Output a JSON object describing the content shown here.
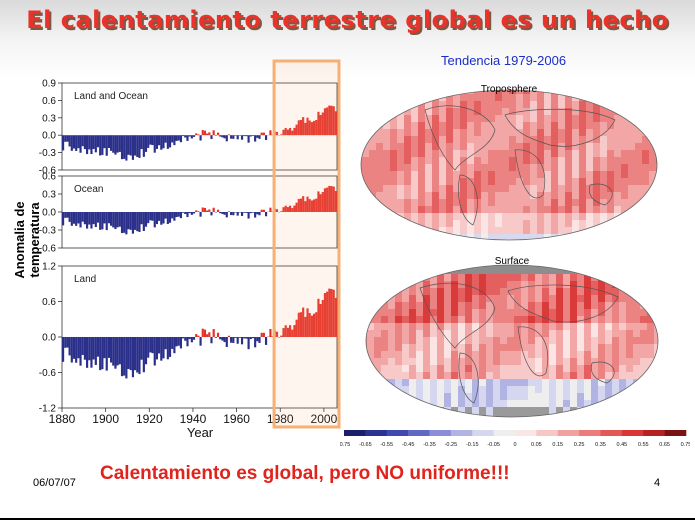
{
  "slide": {
    "title": "El calentamiento terrestre global es un hecho",
    "subtitle": "Tendencia 1979-2006",
    "ylabel": "Anomalia de temperatura",
    "caption": "Calentamiento es global, pero NO uniforme!!!",
    "date": "06/07/07",
    "page_number": "4"
  },
  "colors": {
    "warm": "#e5302a",
    "cool": "#2a2f8a",
    "highlight": "#f6b073",
    "title": "#e8322a"
  },
  "chart_data": {
    "type": "bar",
    "xlabel": "Year",
    "x_ticks": [
      "1880",
      "1900",
      "1920",
      "1940",
      "1960",
      "1980",
      "2000"
    ],
    "panels": [
      {
        "name": "Land and Ocean",
        "ticks": [
          "0.9",
          "0.6",
          "0.3",
          "0.0",
          "-0.3",
          "-0.6"
        ],
        "ylim": [
          -0.6,
          0.9
        ]
      },
      {
        "name": "Ocean",
        "ticks": [
          "0.6",
          "0.3",
          "0.0",
          "-0.3",
          "-0.6"
        ],
        "ylim": [
          -0.6,
          0.6
        ]
      },
      {
        "name": "Land",
        "ticks": [
          "1.2",
          "0.6",
          "0.0",
          "-0.6",
          "-1.2"
        ],
        "ylim": [
          -1.2,
          1.2
        ]
      }
    ],
    "highlight_range": [
      1979,
      2006
    ]
  },
  "maps": {
    "troposphere_label": "Troposphere",
    "surface_label": "Surface"
  },
  "colorbar": {
    "ticks": [
      "-0.75",
      "-0.65",
      "-0.55",
      "-0.45",
      "-0.35",
      "-0.25",
      "-0.15",
      "-0.05",
      "0",
      "0.05",
      "0.15",
      "0.25",
      "0.35",
      "0.45",
      "0.55",
      "0.65",
      "0.75"
    ],
    "colors": [
      "#1c1f6b",
      "#2b3290",
      "#4049b0",
      "#6168c4",
      "#8a8ed6",
      "#b1b3e3",
      "#d5d6ef",
      "#eeeeee",
      "#fbe6e6",
      "#f7c6c6",
      "#f2a1a1",
      "#ec7c7c",
      "#e45757",
      "#d93636",
      "#b52222",
      "#7a1414"
    ]
  }
}
